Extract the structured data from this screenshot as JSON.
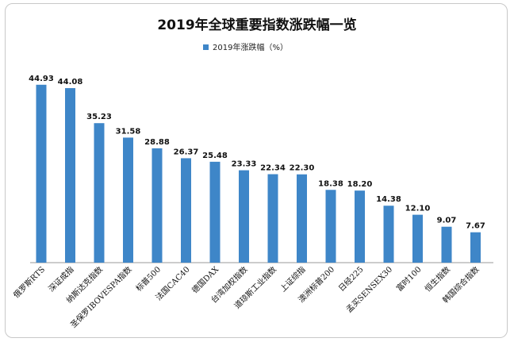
{
  "chart_data": {
    "type": "bar",
    "title": "2019年全球重要指数涨跌幅一览",
    "legend_position": "top-left",
    "series": [
      {
        "name": "2019年涨跌幅（%）",
        "color": "#3e86c8",
        "values": [
          44.93,
          44.08,
          35.23,
          31.58,
          28.88,
          26.37,
          25.48,
          23.33,
          22.34,
          22.3,
          18.38,
          18.2,
          14.38,
          12.1,
          9.07,
          7.67
        ],
        "value_labels": [
          "44.93",
          "44.08",
          "35.23",
          "31.58",
          "28.88",
          "26.37",
          "25.48",
          "23.33",
          "22.34",
          "22.30",
          "18.38",
          "18.20",
          "14.38",
          "12.10",
          "9.07",
          "7.67"
        ]
      }
    ],
    "categories": [
      "俄罗斯RTS",
      "深证成指",
      "纳斯达克指数",
      "圣保罗IBOVESPA指数",
      "标普500",
      "法国CAC40",
      "德国DAX",
      "台湾加权指数",
      "道琼斯工业指数",
      "上证综指",
      "澳洲标普200",
      "日经225",
      "孟买SENSEX30",
      "富时100",
      "恒生指数",
      "韩国综合指数"
    ],
    "ylim": [
      0,
      50
    ],
    "grid": false,
    "xlabel": "",
    "ylabel": ""
  }
}
